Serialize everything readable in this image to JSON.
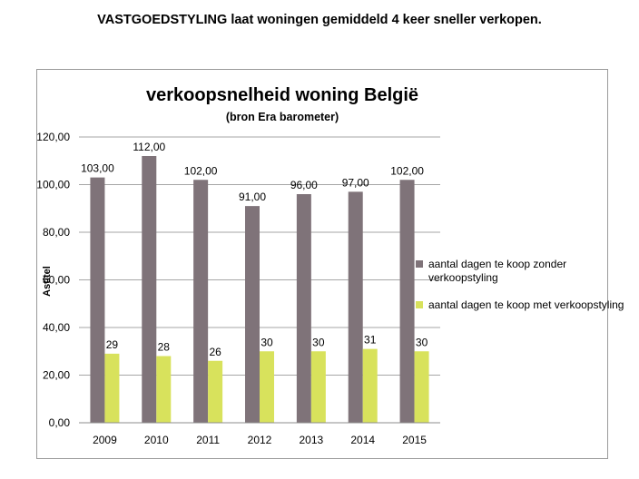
{
  "header": {
    "headline": "VASTGOEDSTYLING laat woningen gemiddeld 4 keer sneller verkopen."
  },
  "chart_data": {
    "type": "bar",
    "title": "verkoopsnelheid woning België",
    "subtitle": "(bron Era barometer)",
    "xlabel": "",
    "ylabel": "Astitel",
    "categories": [
      "2009",
      "2010",
      "2011",
      "2012",
      "2013",
      "2014",
      "2015"
    ],
    "ylim": [
      0,
      120
    ],
    "yticks": [
      0,
      20,
      40,
      60,
      80,
      100,
      120
    ],
    "ytick_labels": [
      "0,00",
      "20,00",
      "40,00",
      "60,00",
      "80,00",
      "100,00",
      "120,00"
    ],
    "grid": true,
    "legend": "right",
    "series": [
      {
        "name": "aantal dagen te koop zonder verkoopstyling",
        "values": [
          103,
          112,
          102,
          91,
          96,
          97,
          102
        ],
        "labels": [
          "103,00",
          "112,00",
          "102,00",
          "91,00",
          "96,00",
          "97,00",
          "102,00"
        ],
        "color": "#7f7379"
      },
      {
        "name": "aantal dagen te koop met verkoopstyling",
        "values": [
          29,
          28,
          26,
          30,
          30,
          31,
          30
        ],
        "labels": [
          "29",
          "28",
          "26",
          "30",
          "30",
          "31",
          "30"
        ],
        "color": "#d8e25c"
      }
    ]
  }
}
